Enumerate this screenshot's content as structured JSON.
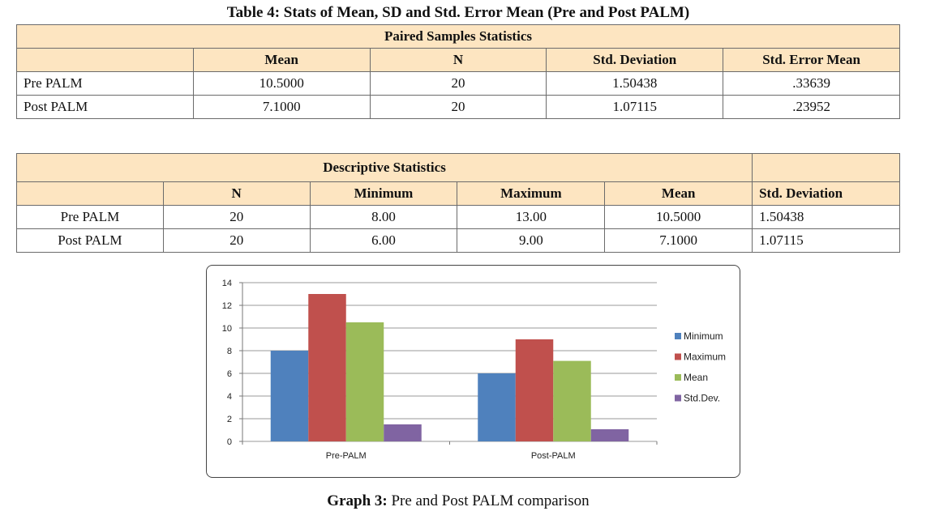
{
  "table1": {
    "title": "Table 4:  Stats of Mean, SD and Std. Error Mean (Pre and Post PALM)",
    "section": "Paired Samples Statistics",
    "headers": [
      "",
      "Mean",
      "N",
      "Std. Deviation",
      "Std. Error Mean"
    ],
    "rows": [
      [
        "Pre PALM",
        "10.5000",
        "20",
        "1.50438",
        ".33639"
      ],
      [
        "Post PALM",
        "7.1000",
        "20",
        "1.07115",
        ".23952"
      ]
    ]
  },
  "table2": {
    "section": "Descriptive Statistics",
    "headers": [
      "",
      "N",
      "Minimum",
      "Maximum",
      "Mean",
      "Std. Deviation"
    ],
    "rows": [
      [
        "Pre PALM",
        "20",
        "8.00",
        "13.00",
        "10.5000",
        "1.50438"
      ],
      [
        "Post PALM",
        "20",
        "6.00",
        "9.00",
        "7.1000",
        "1.07115"
      ]
    ]
  },
  "colors": {
    "header_bg": "#fde5c1",
    "minimum": "#4f81bd",
    "maximum": "#c0504d",
    "mean": "#9bbb59",
    "stddev": "#8064a2"
  },
  "chart_data": {
    "type": "bar",
    "categories": [
      "Pre-PALM",
      "Post-PALM"
    ],
    "series": [
      {
        "name": "Minimum",
        "values": [
          8,
          6
        ]
      },
      {
        "name": "Maximum",
        "values": [
          13,
          9
        ]
      },
      {
        "name": "Mean",
        "values": [
          10.5,
          7.1
        ]
      },
      {
        "name": "Std.Dev.",
        "values": [
          1.5,
          1.07
        ]
      }
    ],
    "yticks": [
      "0",
      "2",
      "4",
      "6",
      "8",
      "10",
      "12",
      "14"
    ],
    "ylim": [
      0,
      14
    ],
    "grid": true,
    "legend": "right"
  },
  "caption": {
    "label": "Graph 3:",
    "text": " Pre and Post PALM comparison"
  }
}
